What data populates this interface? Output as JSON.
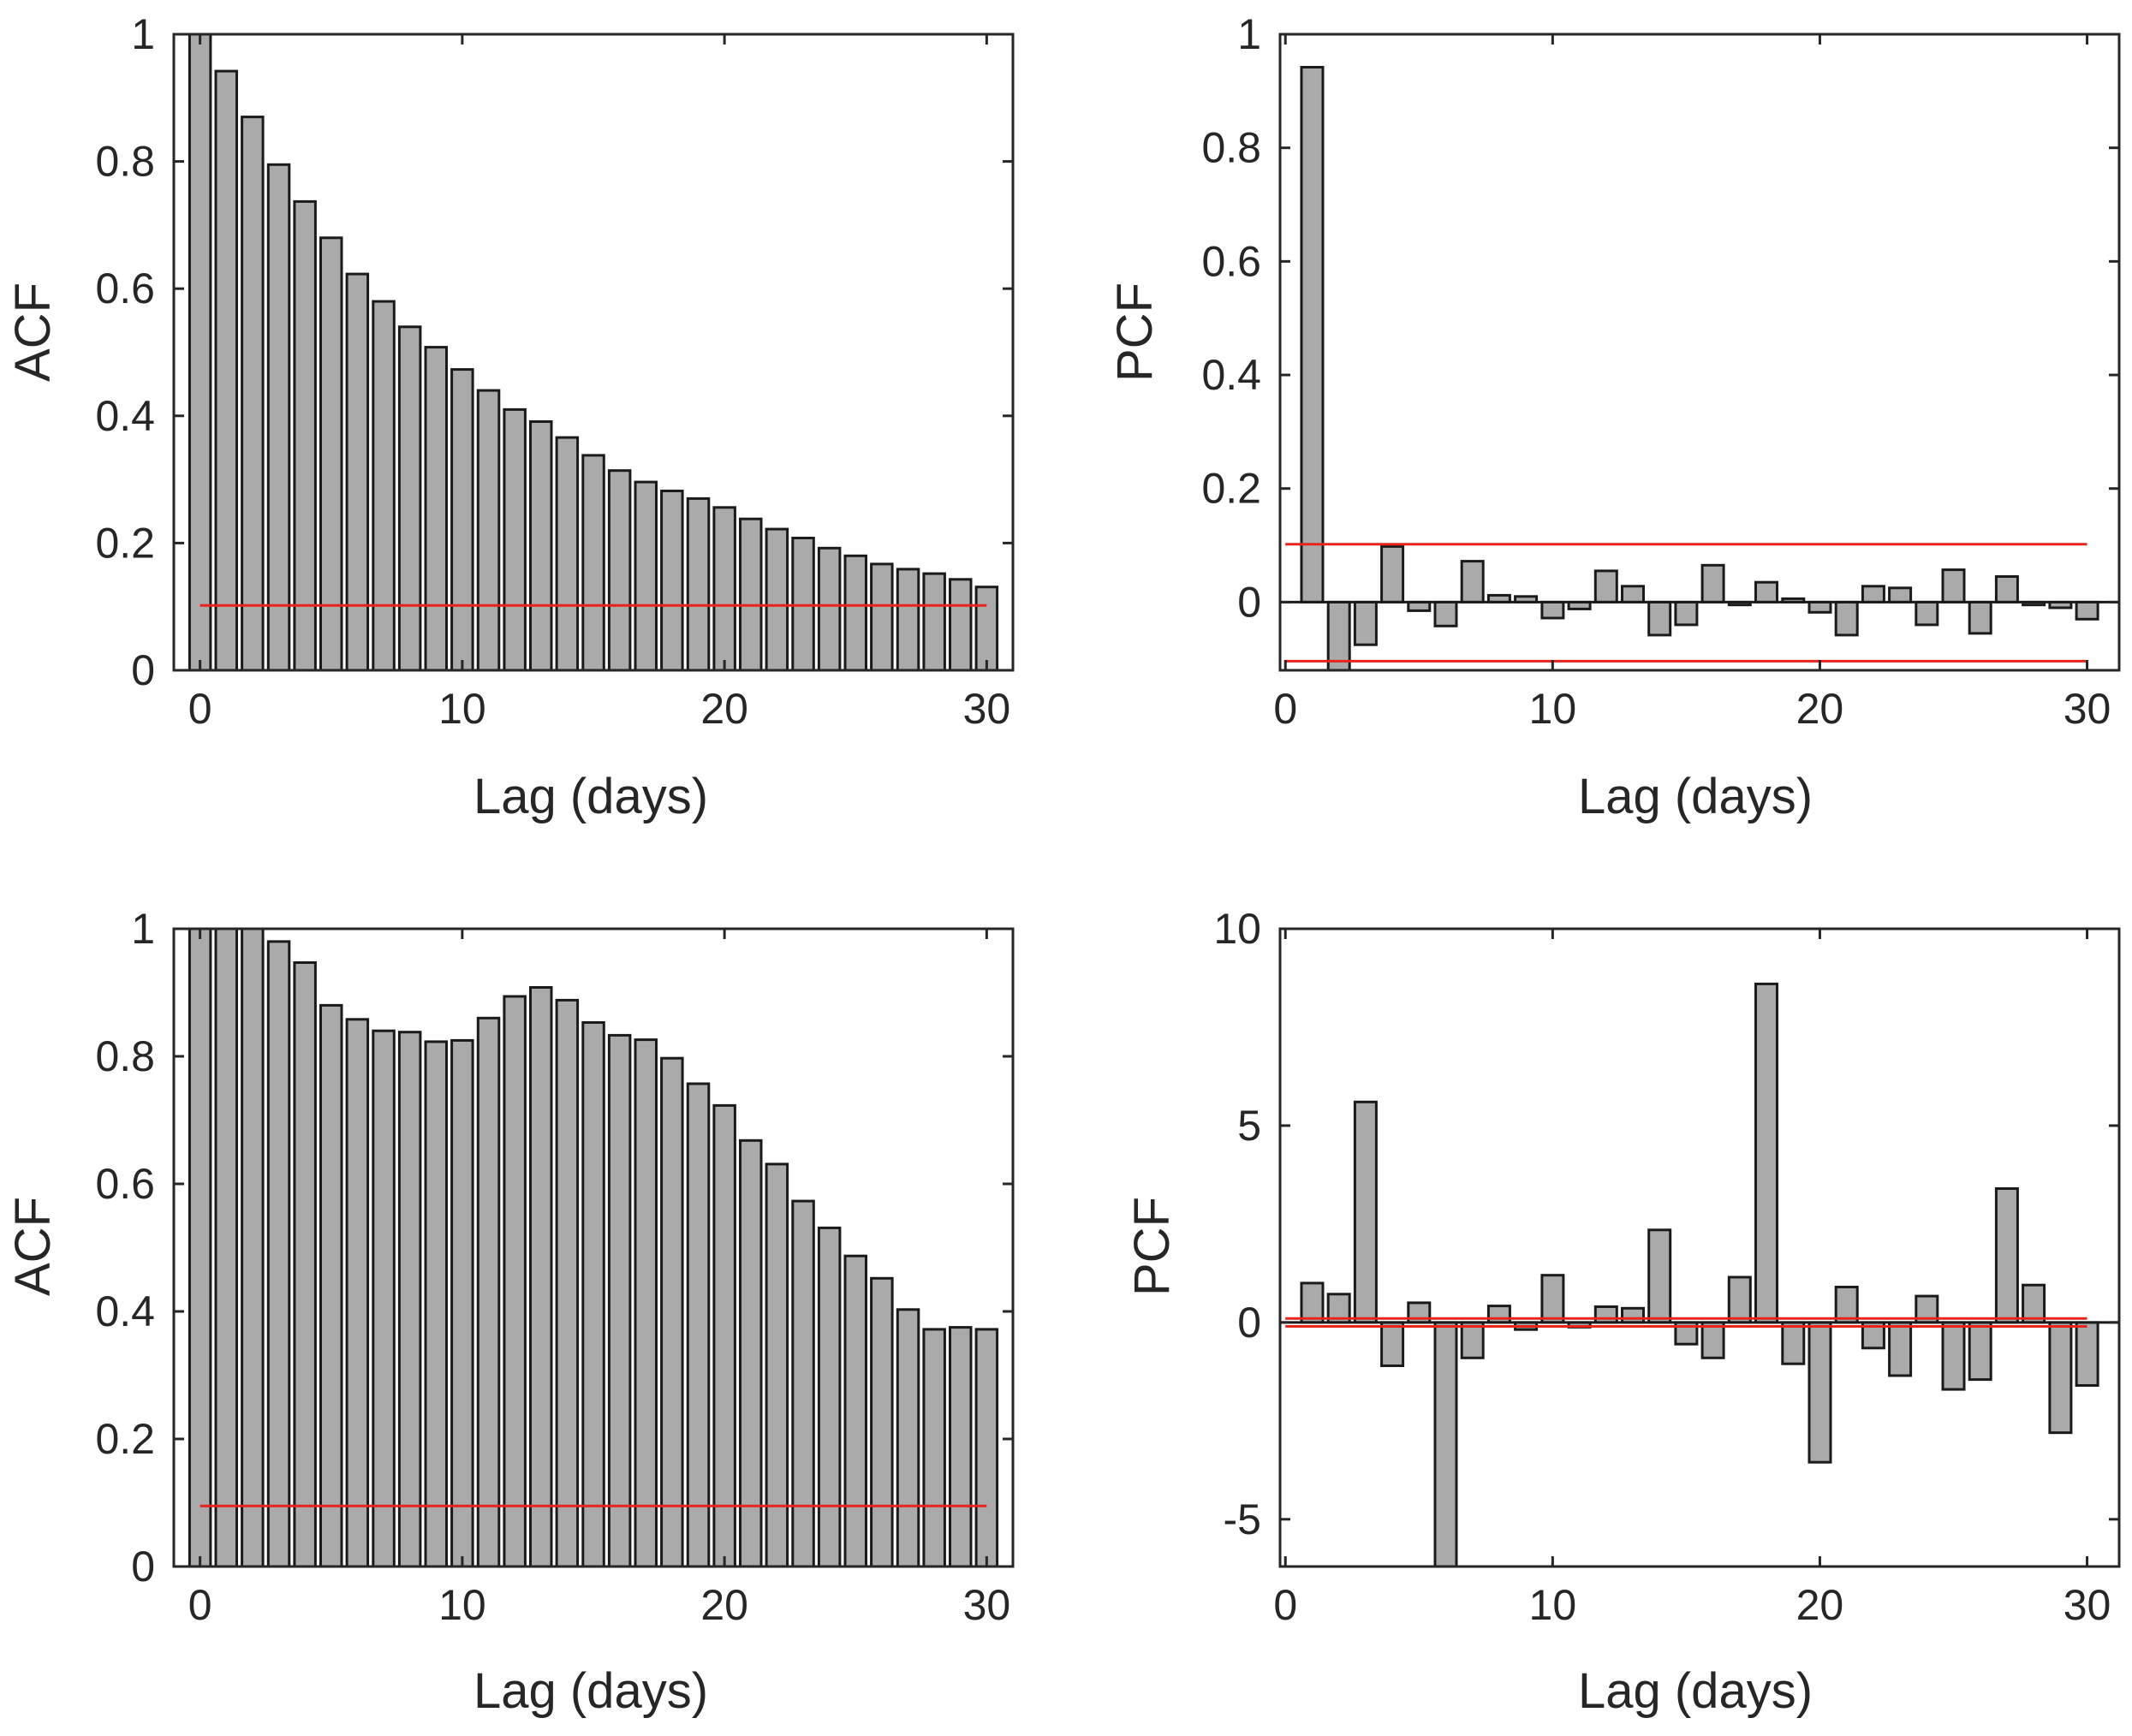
{
  "chart_data": [
    {
      "type": "bar",
      "position": "top-left",
      "title": "",
      "xlabel": "Lag (days)",
      "ylabel": "ACF",
      "xlim": [
        -1,
        31
      ],
      "ylim": [
        0,
        1
      ],
      "xticks": [
        0,
        10,
        20,
        30
      ],
      "ytick_labels": [
        "0",
        "0.2",
        "0.4",
        "0.6",
        "0.8",
        "1"
      ],
      "yticks": [
        0,
        0.2,
        0.4,
        0.6,
        0.8,
        1
      ],
      "lags": [
        0,
        1,
        2,
        3,
        4,
        5,
        6,
        7,
        8,
        9,
        10,
        11,
        12,
        13,
        14,
        15,
        16,
        17,
        18,
        19,
        20,
        21,
        22,
        23,
        24,
        25,
        26,
        27,
        28,
        29,
        30
      ],
      "values": [
        1.0,
        0.942,
        0.87,
        0.795,
        0.737,
        0.68,
        0.623,
        0.58,
        0.54,
        0.508,
        0.473,
        0.44,
        0.41,
        0.391,
        0.366,
        0.338,
        0.314,
        0.296,
        0.282,
        0.27,
        0.256,
        0.238,
        0.222,
        0.208,
        0.192,
        0.18,
        0.167,
        0.159,
        0.152,
        0.143,
        0.131
      ],
      "confidence_bounds": [
        0.102
      ],
      "confidence_lag_range": [
        0,
        30
      ],
      "zero_line": false,
      "grid": false
    },
    {
      "type": "bar",
      "position": "top-right",
      "title": "",
      "xlabel": "Lag (days)",
      "ylabel": "PCF",
      "xlim": [
        -0.2,
        31.2
      ],
      "ylim": [
        -0.12,
        1
      ],
      "xticks": [
        0,
        10,
        20,
        30
      ],
      "ytick_labels": [
        "0",
        "0.2",
        "0.4",
        "0.6",
        "0.8",
        "1"
      ],
      "yticks": [
        0,
        0.2,
        0.4,
        0.6,
        0.8,
        1
      ],
      "lags": [
        1,
        2,
        3,
        4,
        5,
        6,
        7,
        8,
        9,
        10,
        11,
        12,
        13,
        14,
        15,
        16,
        17,
        18,
        19,
        20,
        21,
        22,
        23,
        24,
        25,
        26,
        27,
        28,
        29,
        30
      ],
      "values": [
        0.942,
        -0.18,
        -0.075,
        0.098,
        -0.015,
        -0.042,
        0.072,
        0.012,
        0.01,
        -0.028,
        -0.012,
        0.055,
        0.028,
        -0.058,
        -0.04,
        0.065,
        -0.005,
        0.035,
        0.006,
        -0.018,
        -0.058,
        0.028,
        0.025,
        -0.04,
        0.057,
        -0.055,
        0.045,
        -0.005,
        -0.01,
        -0.03
      ],
      "confidence_bounds": [
        0.102,
        -0.104
      ],
      "confidence_lag_range": [
        0,
        30
      ],
      "zero_line": true,
      "grid": false
    },
    {
      "type": "bar",
      "position": "bottom-left",
      "title": "",
      "xlabel": "Lag (days)",
      "ylabel": "ACF",
      "xlim": [
        -1,
        31
      ],
      "ylim": [
        0,
        1
      ],
      "xticks": [
        0,
        10,
        20,
        30
      ],
      "ytick_labels": [
        "0",
        "0.2",
        "0.4",
        "0.6",
        "0.8",
        "1"
      ],
      "yticks": [
        0,
        0.2,
        0.4,
        0.6,
        0.8,
        1
      ],
      "lags": [
        0,
        1,
        2,
        3,
        4,
        5,
        6,
        7,
        8,
        9,
        10,
        11,
        12,
        13,
        14,
        15,
        16,
        17,
        18,
        19,
        20,
        21,
        22,
        23,
        24,
        25,
        26,
        27,
        28,
        29,
        30
      ],
      "values": [
        1.0,
        1.0,
        1.0,
        0.98,
        0.947,
        0.88,
        0.858,
        0.84,
        0.838,
        0.823,
        0.825,
        0.86,
        0.894,
        0.908,
        0.888,
        0.853,
        0.833,
        0.826,
        0.797,
        0.757,
        0.723,
        0.668,
        0.631,
        0.573,
        0.531,
        0.487,
        0.452,
        0.403,
        0.372,
        0.375,
        0.372
      ],
      "confidence_bounds": [
        0.095
      ],
      "confidence_lag_range": [
        0,
        30
      ],
      "zero_line": false,
      "grid": false
    },
    {
      "type": "bar",
      "position": "bottom-right",
      "title": "",
      "xlabel": "Lag (days)",
      "ylabel": "PCF",
      "xlim": [
        -0.2,
        31.2
      ],
      "ylim": [
        -6.2,
        10
      ],
      "xticks": [
        0,
        10,
        20,
        30
      ],
      "ytick_labels": [
        "-5",
        "0",
        "5",
        "10"
      ],
      "yticks": [
        -5,
        0,
        5,
        10
      ],
      "lags": [
        1,
        2,
        3,
        4,
        5,
        6,
        7,
        8,
        9,
        10,
        11,
        12,
        13,
        14,
        15,
        16,
        17,
        18,
        19,
        20,
        21,
        22,
        23,
        24,
        25,
        26,
        27,
        28,
        29,
        30
      ],
      "values": [
        1.0,
        0.72,
        5.6,
        -1.1,
        0.5,
        -6.5,
        -0.9,
        0.42,
        -0.18,
        1.2,
        -0.12,
        0.4,
        0.36,
        2.35,
        -0.55,
        -0.9,
        1.15,
        8.6,
        -1.05,
        -3.55,
        0.9,
        -0.65,
        -1.35,
        0.67,
        -1.7,
        -1.45,
        3.4,
        0.95,
        -2.8,
        -1.6
      ],
      "confidence_bounds": [
        0.1,
        -0.1
      ],
      "confidence_lag_range": [
        0,
        30
      ],
      "zero_line": true,
      "grid": false
    }
  ],
  "colors": {
    "bar_fill": "#aaaaaa",
    "bar_edge": "#1a1a1a",
    "reference_line": "#e8231e",
    "axis": "#262626"
  }
}
